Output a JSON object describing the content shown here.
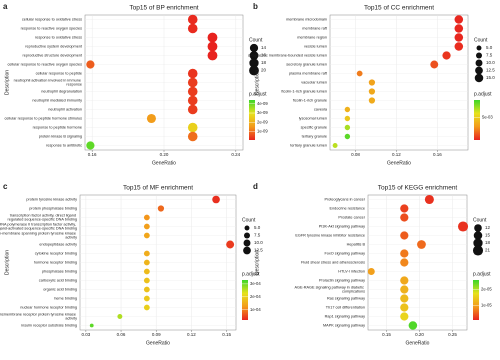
{
  "chart_data": [
    {
      "type": "dot",
      "panel": "a",
      "title": "Top15 of BP enrichment",
      "x_label": "GeneRatio",
      "y_label": "Description",
      "categories": [
        "cellular response to oxidative stress",
        "response to reactive oxygen species",
        "response to oxidative stress",
        "reproductive system development",
        "reproductive structure development",
        "cellular response to reactive oxygen species",
        "cellular response to peptide",
        "neutrophil activation involved in immune response",
        "neutrophil degranulation",
        "neutrophil mediated immunity",
        "neutrophil activation",
        "cellular response to peptide hormone stimulus",
        "response to peptide hormone",
        "protein kinase B signaling",
        "response to antibiotic"
      ],
      "values": [
        0.216,
        0.216,
        0.227,
        0.227,
        0.227,
        0.159,
        0.216,
        0.216,
        0.216,
        0.216,
        0.216,
        0.193,
        0.216,
        0.216,
        0.159
      ],
      "count": [
        19,
        19,
        20,
        20,
        20,
        14,
        19,
        19,
        19,
        19,
        19,
        17,
        19,
        19,
        14
      ],
      "p_adjust": [
        2e-10,
        2e-10,
        1e-10,
        1e-10,
        1e-10,
        8e-10,
        3e-10,
        4e-10,
        4e-10,
        4e-10,
        4e-10,
        1.6e-09,
        2.6e-09,
        1e-09,
        4.1e-09
      ],
      "xlim": [
        0.156,
        0.244
      ],
      "xticks": [
        0.16,
        {
          "value": 0.2,
          "label": "0.20"
        },
        0.24
      ],
      "size_title": "Count",
      "size_ticks": [
        14,
        16,
        18,
        20
      ],
      "color_title": "p.adjust",
      "color_lim": [
        1e-10,
        4.4e-09
      ],
      "color_ticks": [
        {
          "value": 1e-09,
          "label": "1e-09"
        },
        {
          "value": 2e-09,
          "label": "2e-09"
        },
        {
          "value": 3e-09,
          "label": "3e-09"
        },
        {
          "value": 4e-09,
          "label": "4e-09"
        }
      ],
      "gradient": [
        "#e8231f",
        "#f39a1b",
        "#e6e21d",
        "#3bd62a"
      ]
    },
    {
      "type": "dot",
      "panel": "b",
      "title": "Top15 of CC enrichment",
      "x_label": "GeneRatio",
      "y_label": "Description",
      "categories": [
        "membrane microdomain",
        "membrane raft",
        "membrane region",
        "vesicle lumen",
        "cytoplasmic membrane-bounded vesicle lumen",
        "secretory granule lumen",
        "plasma membrane raft",
        "vacuolar lumen",
        "ficolin-1-rich granule lumen",
        "ficolin-1-rich granule",
        "caveola",
        "lysosomal lumen",
        "specific granule",
        "tertiary granule",
        "tertiary granule lumen"
      ],
      "values": [
        0.181,
        0.181,
        0.181,
        0.181,
        0.169,
        0.157,
        0.084,
        0.096,
        0.096,
        0.096,
        0.072,
        0.072,
        0.072,
        0.072,
        0.06
      ],
      "count": [
        15,
        15,
        15,
        15,
        14,
        13,
        7,
        8,
        8,
        8,
        6,
        6,
        6,
        6,
        5
      ],
      "p_adjust": [
        0.0006,
        0.0006,
        0.0006,
        0.0007,
        0.0009,
        0.0015,
        0.0025,
        0.0035,
        0.0037,
        0.0038,
        0.004,
        0.0048,
        0.0068,
        0.008,
        0.0065
      ],
      "xlim": [
        0.055,
        0.19
      ],
      "xticks": [
        0.08,
        0.12,
        0.16
      ],
      "size_title": "Count",
      "size_ticks": [
        {
          "value": 5,
          "label": "5.0"
        },
        7.5,
        {
          "value": 10,
          "label": "10.0"
        },
        12.5,
        {
          "value": 15,
          "label": "15.0"
        }
      ],
      "color_title": "p.adjust",
      "color_lim": [
        0.0005,
        0.0085
      ],
      "color_ticks": [
        {
          "value": 0.005,
          "label": "5e-03"
        }
      ],
      "gradient": [
        "#e8231f",
        "#f39a1b",
        "#e6e21d",
        "#3bd62a"
      ]
    },
    {
      "type": "dot",
      "panel": "c",
      "title": "Top15 of MF enrichment",
      "x_label": "GeneRatio",
      "y_label": "Description",
      "categories": [
        "protein tyrosine kinase activity",
        "protein phosphatase binding",
        "transcription factor activity, direct ligand regulated sequence-specific DNA binding",
        "RNA polymerase II transcription factor activity, ligand-activated sequence-specific DNA binding",
        "non-membrane spanning protein tyrosine kinase activity",
        "endopeptidase activity",
        "cytokine receptor binding",
        "hormone receptor binding",
        "phosphatase binding",
        "carboxylic acid binding",
        "organic acid binding",
        "heme binding",
        "nuclear hormone receptor binding",
        "transmembrane receptor protein tyrosine kinase activity",
        "insulin receptor substrate binding"
      ],
      "values": [
        0.141,
        0.094,
        0.082,
        0.082,
        0.082,
        0.153,
        0.082,
        0.082,
        0.082,
        0.082,
        0.082,
        0.082,
        0.082,
        0.059,
        0.035
      ],
      "count": [
        12,
        8,
        7,
        7,
        7,
        13,
        7,
        7,
        7,
        7,
        7,
        7,
        7,
        5,
        3
      ],
      "p_adjust": [
        3e-05,
        8e-05,
        0.00012,
        0.00013,
        0.00014,
        4e-05,
        0.00015,
        0.00016,
        0.00017,
        0.00018,
        0.00018,
        0.00019,
        0.0002,
        0.00026,
        0.00031
      ],
      "xlim": [
        0.025,
        0.158
      ],
      "xticks": [
        0.03,
        0.06,
        0.09,
        0.12,
        0.15
      ],
      "size_title": "Count",
      "size_ticks": [
        {
          "value": 5,
          "label": "5.0"
        },
        7.5,
        {
          "value": 10,
          "label": "10.0"
        },
        12.5
      ],
      "color_title": "p.adjust",
      "color_lim": [
        2e-05,
        0.00033
      ],
      "color_ticks": [
        {
          "value": 0.0001,
          "label": "1e-04"
        },
        {
          "value": 0.0002,
          "label": "2e-04"
        },
        {
          "value": 0.0003,
          "label": "3e-04"
        }
      ],
      "gradient": [
        "#e8231f",
        "#f39a1b",
        "#e6e21d",
        "#3bd62a"
      ]
    },
    {
      "type": "dot",
      "panel": "d",
      "title": "Top15 of KEGG enrichment",
      "x_label": "GeneRatio",
      "y_label": "Description",
      "categories": [
        "Proteoglycans in cancer",
        "Endocrine resistance",
        "Prostate cancer",
        "PI3K-Akt signaling pathway",
        "EGFR tyrosine kinase inhibitor resistance",
        "Hepatitis B",
        "FoxO signaling pathway",
        "Fluid shear stress and atherosclerosis",
        "HTLV-I infection",
        "Prolactin signaling pathway",
        "AGE-RAGE signaling pathway in diabetic complications",
        "Ras signaling pathway",
        "Th17 cell differentiation",
        "Rap1 signaling pathway",
        "MAPK signaling pathway"
      ],
      "values": [
        0.215,
        0.177,
        0.177,
        0.266,
        0.177,
        0.203,
        0.177,
        0.177,
        0.127,
        0.177,
        0.177,
        0.177,
        0.177,
        0.177,
        0.19
      ],
      "count": [
        17,
        14,
        14,
        21,
        14,
        16,
        14,
        14,
        10,
        14,
        14,
        14,
        14,
        14,
        15
      ],
      "p_adjust": [
        2e-06,
        3e-06,
        4e-06,
        2e-06,
        5e-06,
        6e-06,
        7e-06,
        8e-06,
        1e-05,
        1.1e-05,
        1.2e-05,
        1.3e-05,
        1.4e-05,
        1.6e-05,
        2.5e-05
      ],
      "xlim": [
        0.122,
        0.272
      ],
      "xticks": [
        0.15,
        {
          "value": 0.2,
          "label": "0.20"
        },
        0.25
      ],
      "size_title": "Count",
      "size_ticks": [
        12,
        15,
        18,
        21
      ],
      "color_title": "p.adjust",
      "color_lim": [
        1e-06,
        2.6e-05
      ],
      "color_ticks": [
        {
          "value": 1e-05,
          "label": "1e-05"
        },
        {
          "value": 2e-05,
          "label": "2e-05"
        }
      ],
      "gradient": [
        "#e8231f",
        "#f39a1b",
        "#e6e21d",
        "#3bd62a"
      ]
    }
  ]
}
